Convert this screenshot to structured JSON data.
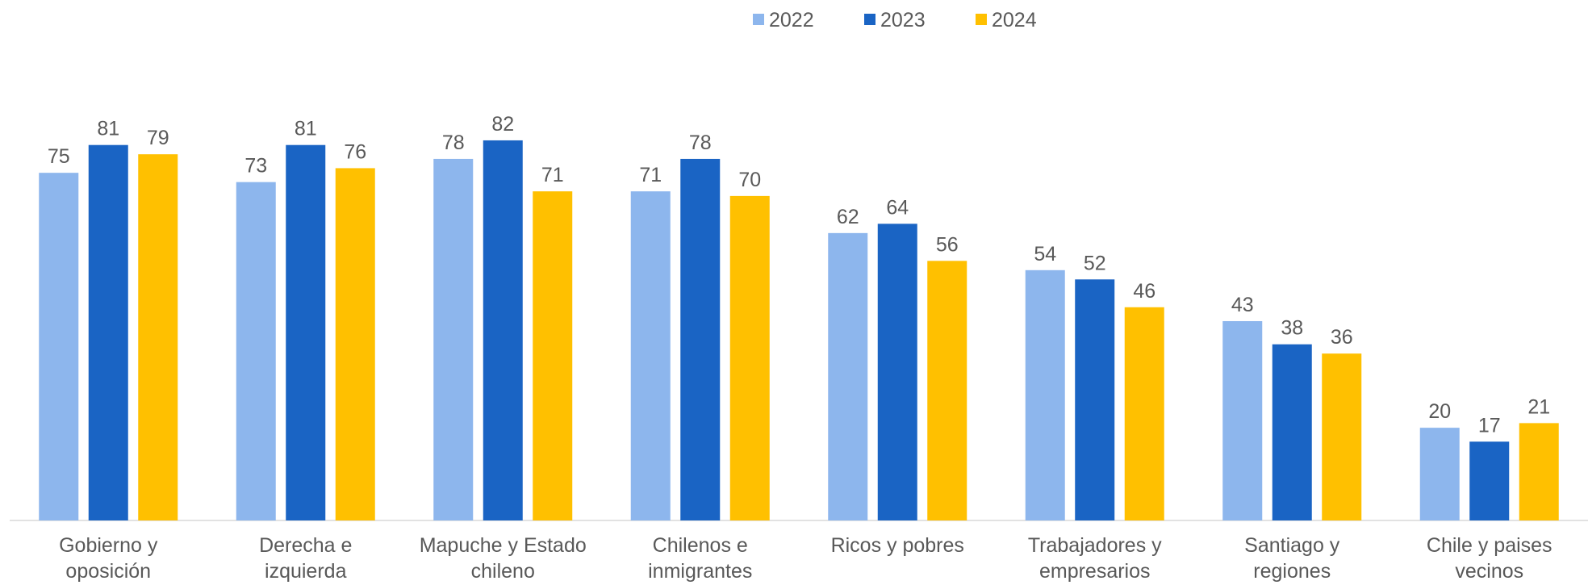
{
  "chart_data": {
    "type": "bar",
    "categories": [
      "Gobierno y oposición",
      "Derecha e izquierda",
      "Mapuche y Estado chileno",
      "Chilenos e inmigrantes",
      "Ricos y pobres",
      "Trabajadores y empresarios",
      "Santiago y regiones",
      "Chile y paises vecinos"
    ],
    "series": [
      {
        "name": "2022",
        "color": "#8db6ed",
        "values": [
          75,
          73,
          78,
          71,
          62,
          54,
          43,
          20
        ]
      },
      {
        "name": "2023",
        "color": "#1a64c4",
        "values": [
          81,
          81,
          82,
          78,
          64,
          52,
          38,
          17
        ]
      },
      {
        "name": "2024",
        "color": "#ffc000",
        "values": [
          79,
          76,
          71,
          70,
          56,
          46,
          36,
          21
        ]
      }
    ],
    "ylim": [
      0,
      90
    ],
    "legend": "top"
  }
}
